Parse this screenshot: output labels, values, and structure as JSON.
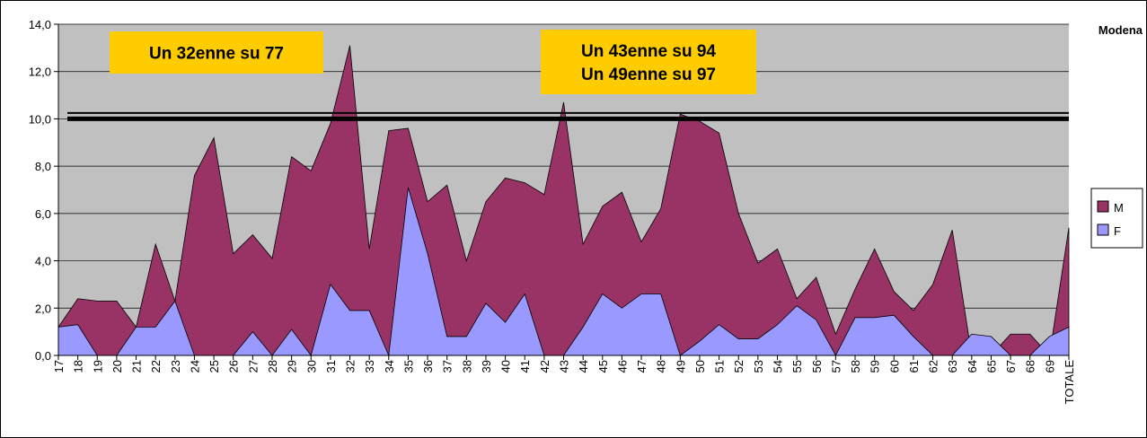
{
  "chart_data": {
    "type": "area",
    "location": "Modena",
    "categories": [
      "17",
      "18",
      "19",
      "20",
      "21",
      "22",
      "23",
      "24",
      "25",
      "26",
      "27",
      "28",
      "29",
      "30",
      "31",
      "32",
      "33",
      "34",
      "35",
      "36",
      "37",
      "38",
      "39",
      "40",
      "41",
      "42",
      "43",
      "44",
      "45",
      "46",
      "47",
      "48",
      "49",
      "50",
      "51",
      "52",
      "53",
      "54",
      "55",
      "56",
      "57",
      "58",
      "59",
      "60",
      "61",
      "62",
      "63",
      "64",
      "65",
      "67",
      "68",
      "69",
      "TOTALE"
    ],
    "series": [
      {
        "name": "M",
        "color": "#993366",
        "values": [
          1.2,
          2.4,
          2.3,
          2.3,
          1.2,
          4.7,
          2.3,
          7.6,
          9.2,
          4.3,
          5.1,
          4.1,
          8.4,
          7.8,
          9.8,
          13.1,
          4.5,
          9.5,
          9.6,
          6.5,
          7.2,
          4.0,
          6.5,
          7.5,
          7.3,
          6.8,
          10.7,
          4.7,
          6.3,
          6.9,
          4.8,
          6.2,
          10.2,
          9.9,
          9.4,
          6.0,
          3.9,
          4.5,
          2.4,
          3.3,
          0.9,
          2.8,
          4.5,
          2.7,
          1.9,
          3.0,
          5.3,
          0,
          0,
          0.9,
          0.9,
          0,
          5.4
        ]
      },
      {
        "name": "F",
        "color": "#9999ff",
        "values": [
          1.2,
          1.3,
          0,
          0,
          1.2,
          1.2,
          2.3,
          0,
          0,
          0,
          1.0,
          0,
          1.1,
          0,
          3.0,
          1.9,
          1.9,
          0,
          7.1,
          4.3,
          0.8,
          0.8,
          2.2,
          1.4,
          2.6,
          0,
          0,
          1.2,
          2.6,
          2.0,
          2.6,
          2.6,
          0,
          0.6,
          1.3,
          0.7,
          0.7,
          1.3,
          2.1,
          1.5,
          0,
          1.6,
          1.6,
          1.7,
          0.8,
          0,
          0,
          0.9,
          0.8,
          0,
          0,
          0.8,
          1.2
        ]
      }
    ],
    "ylim": [
      0,
      14
    ],
    "yticks": [
      {
        "value": 0,
        "label": "0,0"
      },
      {
        "value": 2,
        "label": "2,0"
      },
      {
        "value": 4,
        "label": "4,0"
      },
      {
        "value": 6,
        "label": "6,0"
      },
      {
        "value": 8,
        "label": "8,0"
      },
      {
        "value": 10,
        "label": "10,0"
      },
      {
        "value": 12,
        "label": "12,0"
      },
      {
        "value": 14,
        "label": "14,0"
      }
    ],
    "grid": true,
    "hlines": [
      10,
      10.25
    ],
    "annotations": [
      [
        "Un 32enne su 77"
      ],
      [
        "Un 43enne su 94",
        "Un 49enne su 97"
      ]
    ],
    "legend": "right"
  }
}
